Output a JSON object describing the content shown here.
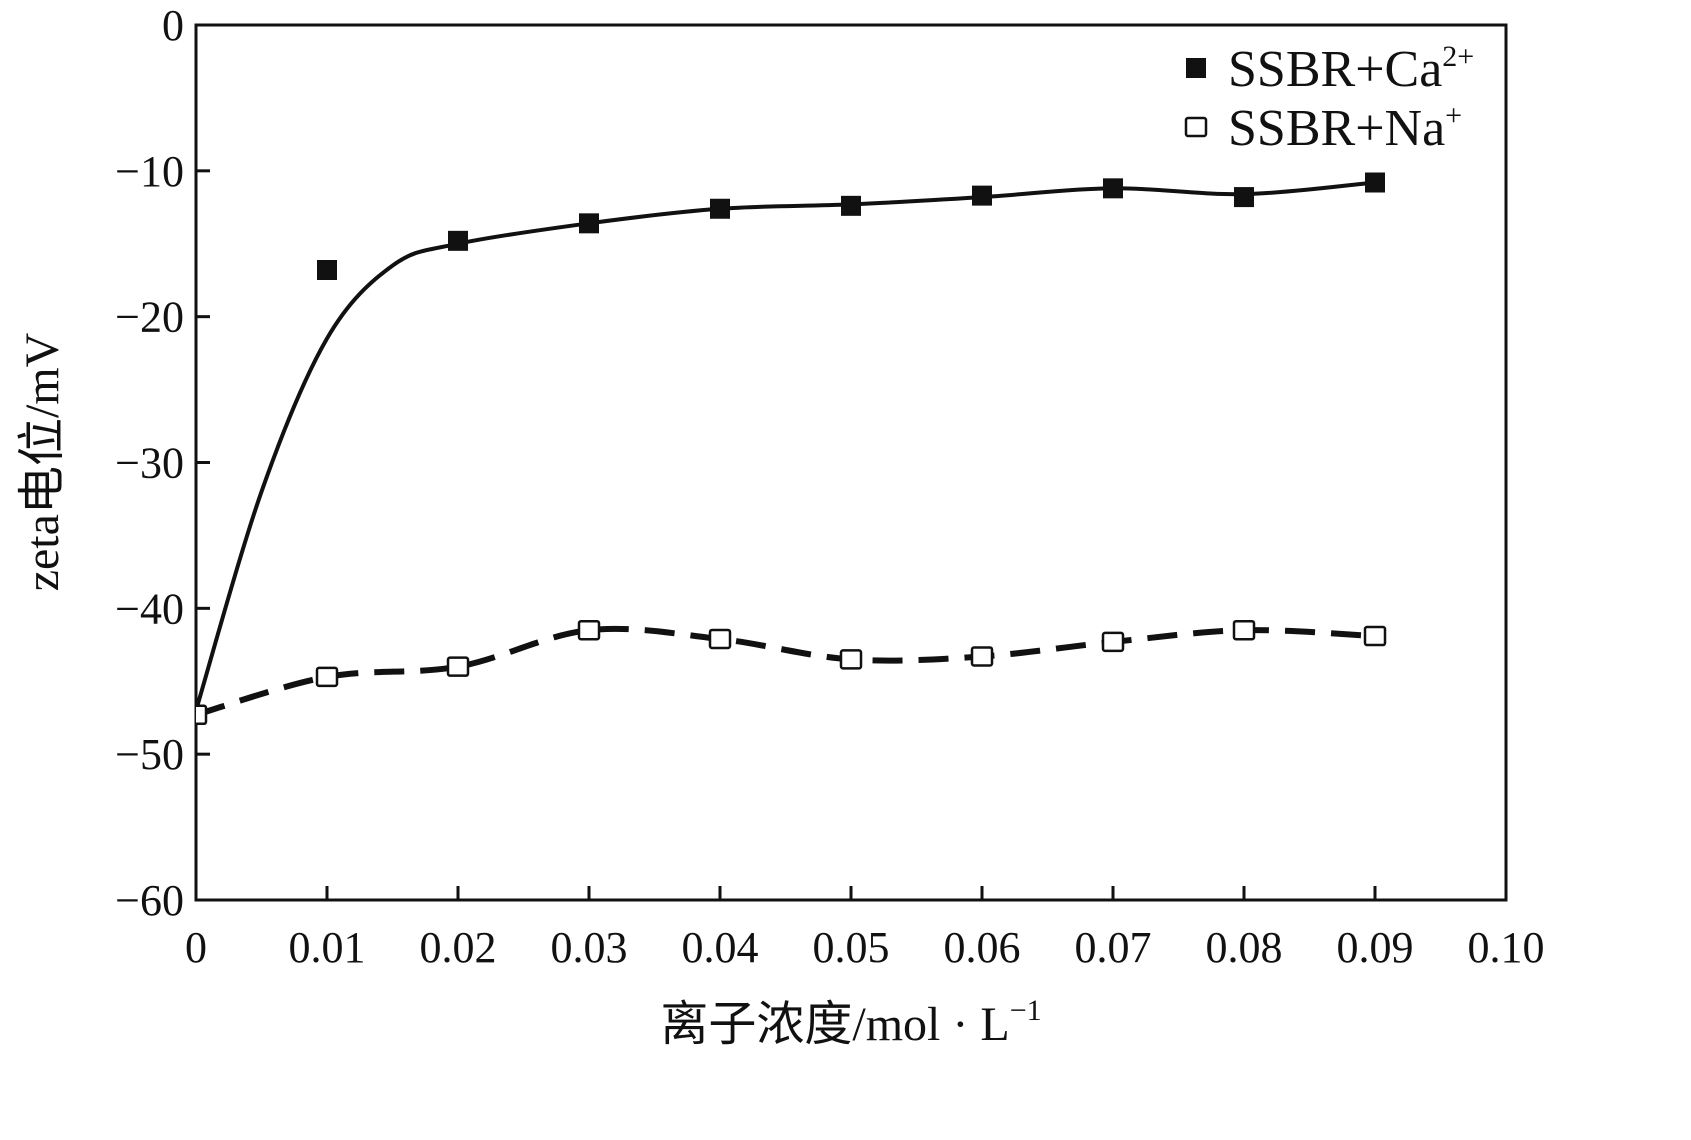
{
  "chart_data": {
    "type": "line",
    "xlabel": "离子浓度/mol · L",
    "xlabel_sup": "−1",
    "ylabel": "zeta电位/mV",
    "xlim": [
      0,
      0.1
    ],
    "ylim": [
      -60,
      0
    ],
    "x_ticks": [
      0,
      0.01,
      0.02,
      0.03,
      0.04,
      0.05,
      0.06,
      0.07,
      0.08,
      0.09,
      0.1
    ],
    "x_tick_labels": [
      "0",
      "0.01",
      "0.02",
      "0.03",
      "0.04",
      "0.05",
      "0.06",
      "0.07",
      "0.08",
      "0.09",
      "0.10"
    ],
    "y_ticks": [
      0,
      -10,
      -20,
      -30,
      -40,
      -50,
      -60
    ],
    "y_tick_labels": [
      "0",
      "−10",
      "−20",
      "−30",
      "−40",
      "−50",
      "−60"
    ],
    "grid": false,
    "legend_position": "top-right",
    "series": [
      {
        "name": "SSBR+Ca",
        "name_sup": "2+",
        "marker": "filled-square",
        "line_style": "solid",
        "color": "#111111",
        "x": [
          0.01,
          0.02,
          0.03,
          0.04,
          0.05,
          0.06,
          0.07,
          0.08,
          0.09
        ],
        "y": [
          -16.8,
          -14.8,
          -13.6,
          -12.6,
          -12.4,
          -11.7,
          -11.2,
          -11.8,
          -10.8
        ],
        "curve_x": [
          0,
          0.005,
          0.01,
          0.015,
          0.02,
          0.03,
          0.04,
          0.05,
          0.06,
          0.07,
          0.08,
          0.09
        ],
        "curve_y": [
          -47.0,
          -32.0,
          -21.5,
          -16.5,
          -15.0,
          -13.6,
          -12.6,
          -12.3,
          -11.8,
          -11.2,
          -11.6,
          -10.8
        ]
      },
      {
        "name": "SSBR+Na",
        "name_sup": "+",
        "marker": "open-square",
        "line_style": "dashed",
        "color": "#111111",
        "x": [
          0,
          0.01,
          0.02,
          0.03,
          0.04,
          0.05,
          0.06,
          0.07,
          0.08,
          0.09
        ],
        "y": [
          -47.3,
          -44.7,
          -44.0,
          -41.5,
          -42.1,
          -43.5,
          -43.3,
          -42.3,
          -41.5,
          -41.9
        ]
      }
    ]
  }
}
